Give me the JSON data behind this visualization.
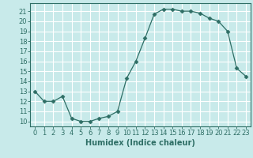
{
  "x": [
    0,
    1,
    2,
    3,
    4,
    5,
    6,
    7,
    8,
    9,
    10,
    11,
    12,
    13,
    14,
    15,
    16,
    17,
    18,
    19,
    20,
    21,
    22,
    23
  ],
  "y": [
    13,
    12,
    12,
    12.5,
    10.3,
    10,
    10,
    10.3,
    10.5,
    11,
    14.3,
    16,
    18.3,
    20.7,
    21.2,
    21.2,
    21,
    21,
    20.8,
    20.3,
    20,
    19,
    15.3,
    14.5
  ],
  "line_color": "#2e6e65",
  "marker": "D",
  "marker_size": 2.5,
  "bg_color": "#c8eaea",
  "grid_color": "#ffffff",
  "xlabel": "Humidex (Indice chaleur)",
  "xlabel_fontsize": 7,
  "ylabel_ticks": [
    10,
    11,
    12,
    13,
    14,
    15,
    16,
    17,
    18,
    19,
    20,
    21
  ],
  "xlim": [
    -0.5,
    23.5
  ],
  "ylim": [
    9.5,
    21.8
  ],
  "tick_fontsize": 6
}
